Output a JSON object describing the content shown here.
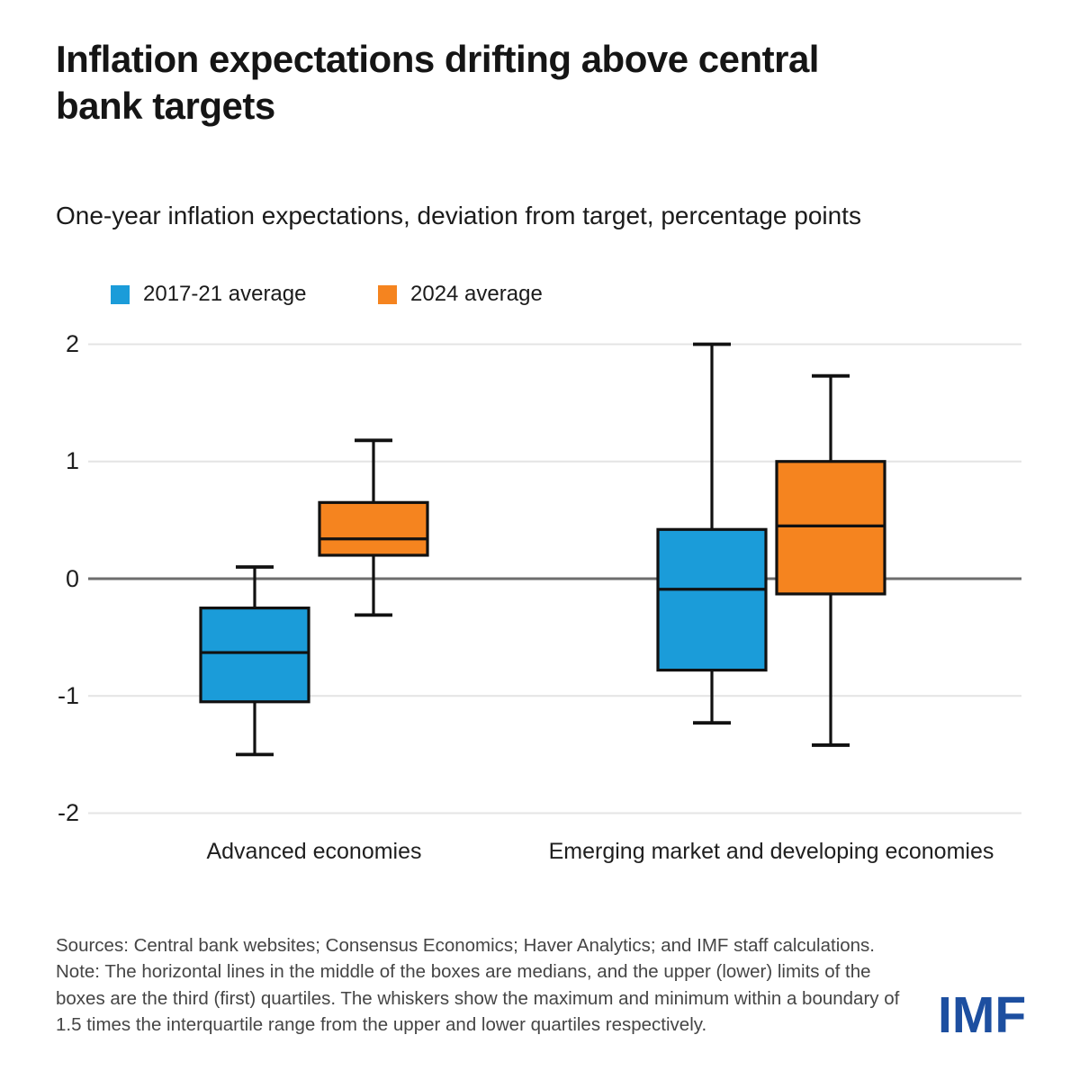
{
  "page": {
    "title_lines": [
      "Inflation expectations drifting above central",
      "bank targets"
    ],
    "subtitle": "One-year inflation expectations, deviation from target, percentage points",
    "footer": {
      "sources": "Sources: Central bank websites; Consensus Economics; Haver Analytics; and IMF staff calculations.",
      "note": "Note: The horizontal lines in the middle of the boxes are medians, and the upper (lower) limits of the boxes are the third (first) quartiles. The whiskers show the maximum and minimum within a boundary of 1.5 times the interquartile range from the upper and lower quartiles respectively."
    },
    "logo_text": "IMF",
    "logo_color": "#1d4fa0"
  },
  "chart_data": {
    "type": "box",
    "title": "Inflation expectations drifting above central bank targets",
    "subtitle": "One-year inflation expectations, deviation from target, percentage points",
    "xlabel": "",
    "ylabel": "Deviation from target, percentage points",
    "categories": [
      "Advanced economies",
      "Emerging market and developing economies"
    ],
    "yticks": [
      2,
      1,
      0,
      -1,
      -2
    ],
    "ytick_labels": [
      "2",
      "1",
      "0",
      "-1",
      "-2"
    ],
    "ylim": [
      -2.2,
      2.2
    ],
    "grid": "horizontal",
    "zero_line": true,
    "legend_position": "top-left",
    "colors": {
      "blue_series": "#1B9CD9",
      "orange_series": "#F5841F",
      "gridline": "#e4e4e4",
      "zero_line": "#6d6d6d",
      "box_outline": "#111111"
    },
    "series": [
      {
        "name": "2017-21 average",
        "color": "#1B9CD9",
        "boxes": [
          {
            "category": "Advanced economies",
            "min": -1.5,
            "q1": -1.05,
            "median": -0.63,
            "q3": -0.25,
            "max": 0.1
          },
          {
            "category": "Emerging market and developing economies",
            "min": -1.23,
            "q1": -0.78,
            "median": -0.09,
            "q3": 0.42,
            "max": 2.0
          }
        ]
      },
      {
        "name": "2024 average",
        "color": "#F5841F",
        "boxes": [
          {
            "category": "Advanced economies",
            "min": -0.31,
            "q1": 0.2,
            "median": 0.34,
            "q3": 0.65,
            "max": 1.18
          },
          {
            "category": "Emerging market and developing economies",
            "min": -1.42,
            "q1": -0.13,
            "median": 0.45,
            "q3": 1.0,
            "max": 1.73
          }
        ]
      }
    ]
  }
}
